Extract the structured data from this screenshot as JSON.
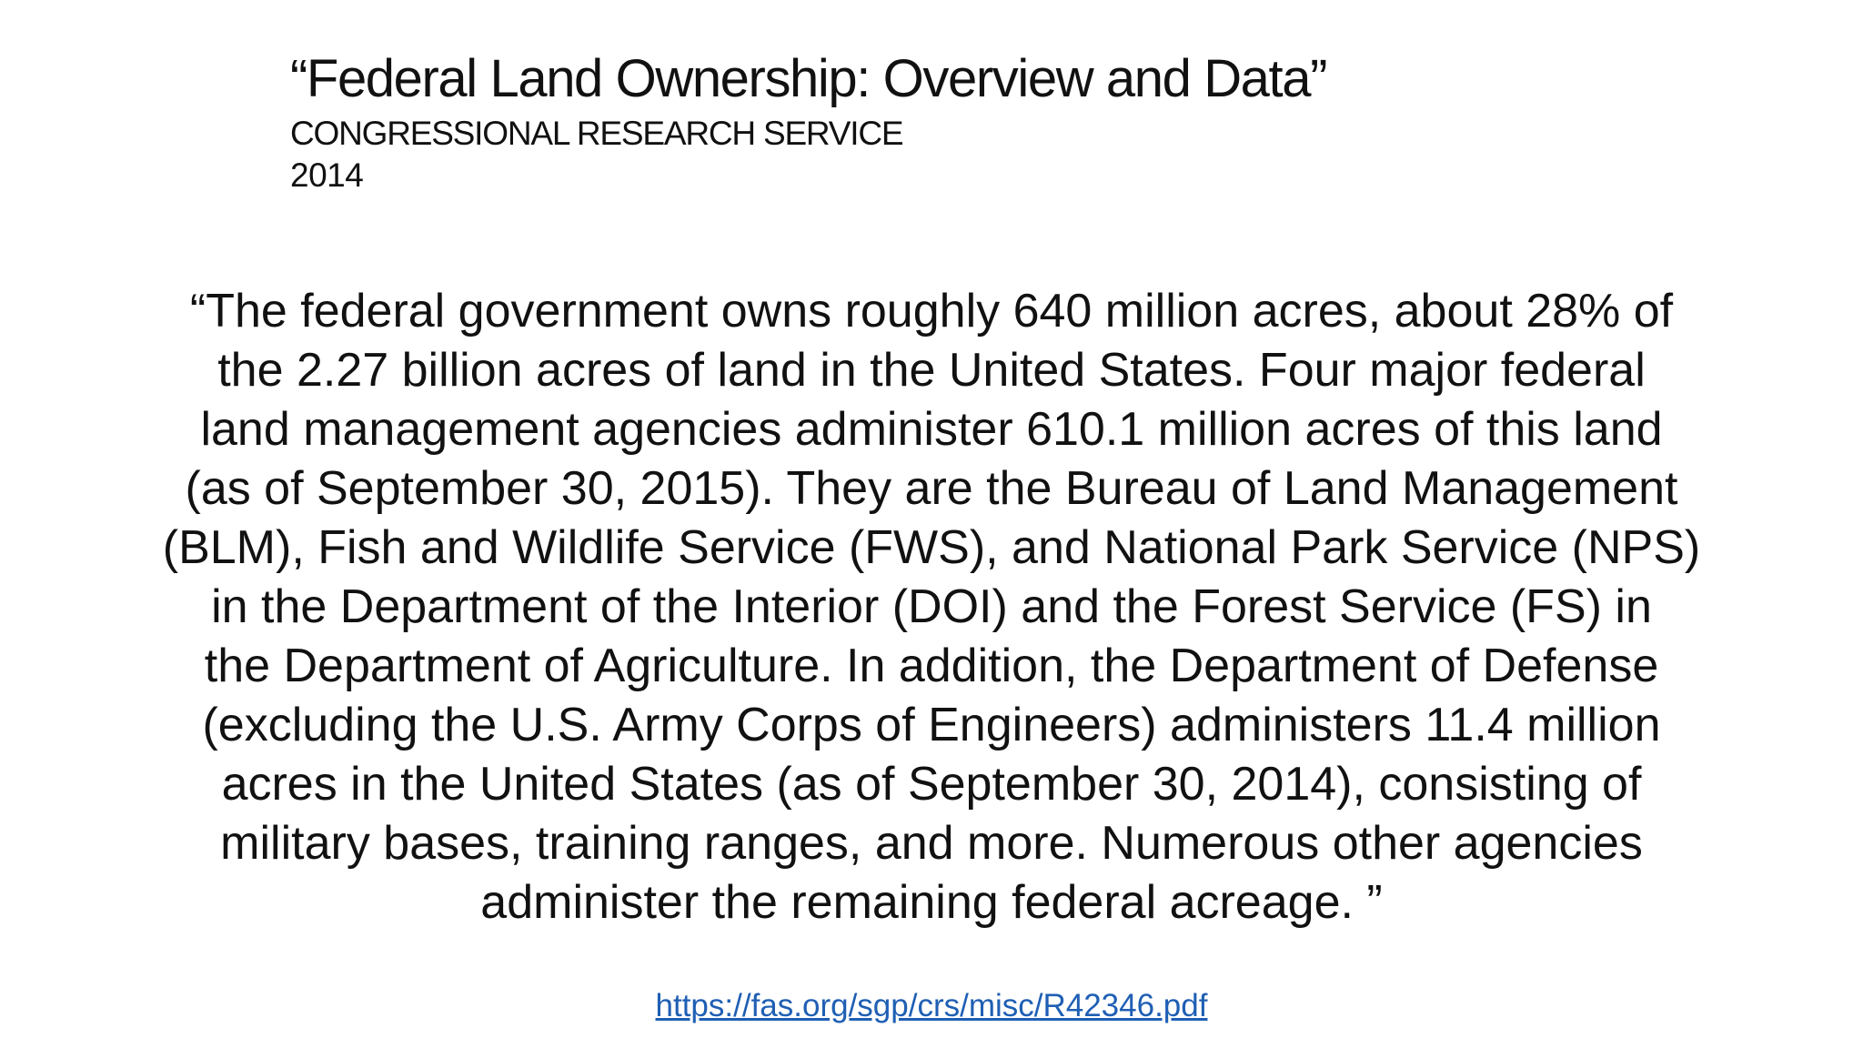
{
  "slide": {
    "title": "“Federal Land Ownership: Overview and Data”",
    "source_org": "CONGRESSIONAL RESEARCH SERVICE",
    "year": "2014",
    "quote_lines": [
      "“The federal government owns roughly 640 million acres, about 28% of",
      "the 2.27 billion acres of land in the United States. Four major federal",
      "land management agencies administer 610.1 million acres of this land",
      "(as of September 30, 2015). They are the Bureau of Land Management",
      "(BLM), Fish and Wildlife Service (FWS), and National Park Service (NPS)",
      "in the Department of the Interior (DOI) and the Forest Service (FS) in",
      "the Department of Agriculture. In addition, the Department of Defense",
      "(excluding the U.S. Army Corps of Engineers) administers 11.4 million",
      "acres in the United States (as of September 30, 2014), consisting of",
      "military bases, training ranges, and more. Numerous other agencies",
      "administer the remaining federal acreage. ”"
    ],
    "link_text": "https://fas.org/sgp/crs/misc/R42346.pdf",
    "link_color": "#1f5fb4"
  }
}
